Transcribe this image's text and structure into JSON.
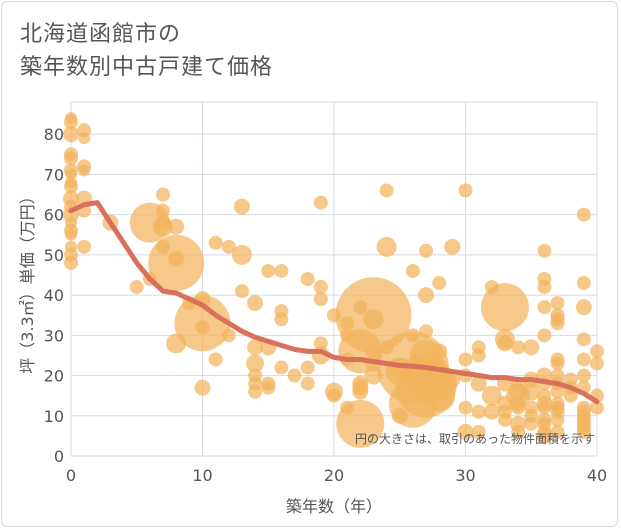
{
  "title_line1": "北海道函館市の",
  "title_line2": "築年数別中古戸建て価格",
  "chart_data": {
    "type": "scatter",
    "title": "北海道函館市の築年数別中古戸建て価格",
    "xlabel": "築年数（年）",
    "ylabel": "坪（3.3㎡）単価（万円）",
    "xlim": [
      0,
      40
    ],
    "ylim": [
      0,
      88
    ],
    "x_ticks": [
      0,
      10,
      20,
      30,
      40
    ],
    "y_ticks": [
      0,
      10,
      20,
      30,
      40,
      50,
      60,
      70,
      80
    ],
    "annotation": "円の大きさは、取引のあった物件面積を示す",
    "point_color": "#f2b35c",
    "line_color": "#d9705a",
    "points": [
      [
        0,
        84,
        6
      ],
      [
        0,
        83,
        7
      ],
      [
        0,
        80,
        8
      ],
      [
        0,
        75,
        7
      ],
      [
        0,
        74,
        7
      ],
      [
        0,
        71,
        7
      ],
      [
        0,
        70,
        6
      ],
      [
        0,
        68,
        6
      ],
      [
        0,
        67,
        7
      ],
      [
        0,
        64,
        8
      ],
      [
        0,
        62,
        7
      ],
      [
        0,
        60,
        8
      ],
      [
        0,
        58,
        6
      ],
      [
        0,
        56,
        7
      ],
      [
        0,
        55,
        6
      ],
      [
        0,
        52,
        6
      ],
      [
        0,
        50,
        7
      ],
      [
        0,
        48,
        7
      ],
      [
        1,
        81,
        7
      ],
      [
        1,
        79,
        6
      ],
      [
        1,
        72,
        7
      ],
      [
        1,
        71,
        6
      ],
      [
        1,
        64,
        8
      ],
      [
        1,
        61,
        7
      ],
      [
        1,
        52,
        7
      ],
      [
        3,
        58,
        8
      ],
      [
        5,
        42,
        7
      ],
      [
        6,
        58,
        20
      ],
      [
        6,
        44,
        7
      ],
      [
        7,
        65,
        7
      ],
      [
        7,
        61,
        7
      ],
      [
        7,
        58,
        7
      ],
      [
        7,
        57,
        10
      ],
      [
        7,
        52,
        7
      ],
      [
        8,
        57,
        8
      ],
      [
        8,
        49,
        8
      ],
      [
        8,
        48,
        28
      ],
      [
        8,
        28,
        10
      ],
      [
        9,
        38,
        7
      ],
      [
        10,
        39,
        8
      ],
      [
        10,
        33,
        28
      ],
      [
        10,
        32,
        7
      ],
      [
        10,
        17,
        8
      ],
      [
        11,
        53,
        7
      ],
      [
        11,
        24,
        7
      ],
      [
        12,
        52,
        7
      ],
      [
        12,
        30,
        7
      ],
      [
        13,
        62,
        8
      ],
      [
        13,
        50,
        10
      ],
      [
        13,
        41,
        7
      ],
      [
        14,
        38,
        8
      ],
      [
        14,
        27,
        8
      ],
      [
        14,
        23,
        9
      ],
      [
        14,
        20,
        7
      ],
      [
        14,
        18,
        7
      ],
      [
        14,
        16,
        7
      ],
      [
        15,
        27,
        8
      ],
      [
        15,
        18,
        7
      ],
      [
        15,
        17,
        7
      ],
      [
        15,
        46,
        7
      ],
      [
        16,
        46,
        7
      ],
      [
        16,
        36,
        7
      ],
      [
        16,
        34,
        7
      ],
      [
        16,
        22,
        7
      ],
      [
        17,
        20,
        7
      ],
      [
        18,
        44,
        7
      ],
      [
        18,
        22,
        7
      ],
      [
        18,
        18,
        7
      ],
      [
        19,
        63,
        7
      ],
      [
        19,
        42,
        7
      ],
      [
        19,
        39,
        7
      ],
      [
        19,
        28,
        7
      ],
      [
        19,
        25,
        9
      ],
      [
        20,
        35,
        7
      ],
      [
        20,
        16,
        9
      ],
      [
        20,
        15,
        7
      ],
      [
        21,
        33,
        7
      ],
      [
        21,
        30,
        7
      ],
      [
        21,
        24,
        7
      ],
      [
        21,
        12,
        7
      ],
      [
        22,
        37,
        7
      ],
      [
        22,
        26,
        22
      ],
      [
        22,
        18,
        8
      ],
      [
        22,
        17,
        8
      ],
      [
        22,
        16,
        8
      ],
      [
        22,
        8,
        24
      ],
      [
        23,
        35,
        38
      ],
      [
        23,
        34,
        10
      ],
      [
        23,
        26,
        8
      ],
      [
        23,
        23,
        8
      ],
      [
        23,
        20,
        9
      ],
      [
        24,
        66,
        7
      ],
      [
        24,
        52,
        10
      ],
      [
        24,
        27,
        7
      ],
      [
        25,
        22,
        10
      ],
      [
        25,
        21,
        14
      ],
      [
        25,
        10,
        8
      ],
      [
        26,
        46,
        7
      ],
      [
        26,
        30,
        7
      ],
      [
        26,
        22,
        36
      ],
      [
        26,
        13,
        24
      ],
      [
        27,
        51,
        7
      ],
      [
        27,
        40,
        8
      ],
      [
        27,
        31,
        7
      ],
      [
        27,
        25,
        16
      ],
      [
        27,
        20,
        24
      ],
      [
        27,
        17,
        30
      ],
      [
        28,
        43,
        7
      ],
      [
        28,
        26,
        8
      ],
      [
        28,
        18,
        18
      ],
      [
        28,
        16,
        10
      ],
      [
        28,
        15,
        16
      ],
      [
        29,
        52,
        8
      ],
      [
        29,
        19,
        8
      ],
      [
        30,
        66,
        7
      ],
      [
        30,
        24,
        7
      ],
      [
        30,
        20,
        7
      ],
      [
        30,
        12,
        7
      ],
      [
        30,
        6,
        8
      ],
      [
        31,
        27,
        7
      ],
      [
        31,
        25,
        7
      ],
      [
        31,
        18,
        8
      ],
      [
        31,
        11,
        7
      ],
      [
        31,
        6,
        7
      ],
      [
        32,
        42,
        7
      ],
      [
        32,
        15,
        10
      ],
      [
        32,
        11,
        8
      ],
      [
        33,
        37,
        24
      ],
      [
        33,
        29,
        10
      ],
      [
        33,
        28,
        8
      ],
      [
        33,
        18,
        8
      ],
      [
        33,
        13,
        8
      ],
      [
        33,
        11,
        7
      ],
      [
        33,
        9,
        7
      ],
      [
        34,
        27,
        7
      ],
      [
        34,
        18,
        7
      ],
      [
        34,
        16,
        9
      ],
      [
        34,
        15,
        12
      ],
      [
        34,
        13,
        8
      ],
      [
        34,
        12,
        7
      ],
      [
        34,
        8,
        8
      ],
      [
        34,
        6,
        7
      ],
      [
        35,
        27,
        8
      ],
      [
        35,
        19,
        8
      ],
      [
        35,
        16,
        9
      ],
      [
        35,
        12,
        7
      ],
      [
        35,
        10,
        7
      ],
      [
        35,
        8,
        7
      ],
      [
        36,
        51,
        7
      ],
      [
        36,
        44,
        7
      ],
      [
        36,
        42,
        7
      ],
      [
        36,
        37,
        7
      ],
      [
        36,
        30,
        7
      ],
      [
        36,
        20,
        8
      ],
      [
        36,
        18,
        7
      ],
      [
        36,
        15,
        7
      ],
      [
        36,
        13,
        8
      ],
      [
        36,
        12,
        7
      ],
      [
        36,
        9,
        7
      ],
      [
        36,
        8,
        7
      ],
      [
        36,
        6,
        7
      ],
      [
        36,
        5,
        8
      ],
      [
        37,
        38,
        7
      ],
      [
        37,
        35,
        7
      ],
      [
        37,
        34,
        7
      ],
      [
        37,
        33,
        7
      ],
      [
        37,
        24,
        7
      ],
      [
        37,
        23,
        7
      ],
      [
        37,
        20,
        7
      ],
      [
        37,
        18,
        7
      ],
      [
        37,
        16,
        7
      ],
      [
        37,
        13,
        7
      ],
      [
        37,
        12,
        7
      ],
      [
        37,
        11,
        7
      ],
      [
        37,
        9,
        7
      ],
      [
        37,
        6,
        7
      ],
      [
        38,
        19,
        7
      ],
      [
        38,
        17,
        7
      ],
      [
        38,
        15,
        7
      ],
      [
        39,
        60,
        7
      ],
      [
        39,
        43,
        7
      ],
      [
        39,
        37,
        8
      ],
      [
        39,
        29,
        7
      ],
      [
        39,
        24,
        7
      ],
      [
        39,
        20,
        7
      ],
      [
        39,
        17,
        7
      ],
      [
        39,
        12,
        7
      ],
      [
        39,
        11,
        7
      ],
      [
        39,
        10,
        7
      ],
      [
        39,
        9,
        7
      ],
      [
        39,
        8,
        7
      ],
      [
        39,
        7,
        7
      ],
      [
        39,
        6,
        7
      ],
      [
        40,
        26,
        7
      ],
      [
        40,
        23,
        7
      ],
      [
        40,
        15,
        7
      ],
      [
        40,
        12,
        7
      ]
    ],
    "trend": [
      [
        0,
        61
      ],
      [
        1,
        62.5
      ],
      [
        2,
        63
      ],
      [
        3,
        58
      ],
      [
        4,
        53
      ],
      [
        5,
        48
      ],
      [
        6,
        44
      ],
      [
        7,
        41
      ],
      [
        8,
        40.5
      ],
      [
        9,
        39
      ],
      [
        10,
        37.5
      ],
      [
        11,
        35
      ],
      [
        12,
        33
      ],
      [
        13,
        31
      ],
      [
        14,
        29.5
      ],
      [
        15,
        28.5
      ],
      [
        16,
        27.5
      ],
      [
        17,
        26.5
      ],
      [
        18,
        26
      ],
      [
        19,
        26
      ],
      [
        20,
        24.5
      ],
      [
        21,
        24
      ],
      [
        22,
        24
      ],
      [
        23,
        23.5
      ],
      [
        24,
        23
      ],
      [
        25,
        22.5
      ],
      [
        26,
        22.3
      ],
      [
        27,
        22
      ],
      [
        28,
        21.5
      ],
      [
        29,
        21
      ],
      [
        30,
        20.5
      ],
      [
        31,
        20
      ],
      [
        32,
        19.5
      ],
      [
        33,
        19.5
      ],
      [
        34,
        19
      ],
      [
        35,
        19
      ],
      [
        36,
        18.5
      ],
      [
        37,
        18
      ],
      [
        38,
        17
      ],
      [
        39,
        15.5
      ],
      [
        40,
        13.5
      ]
    ]
  }
}
